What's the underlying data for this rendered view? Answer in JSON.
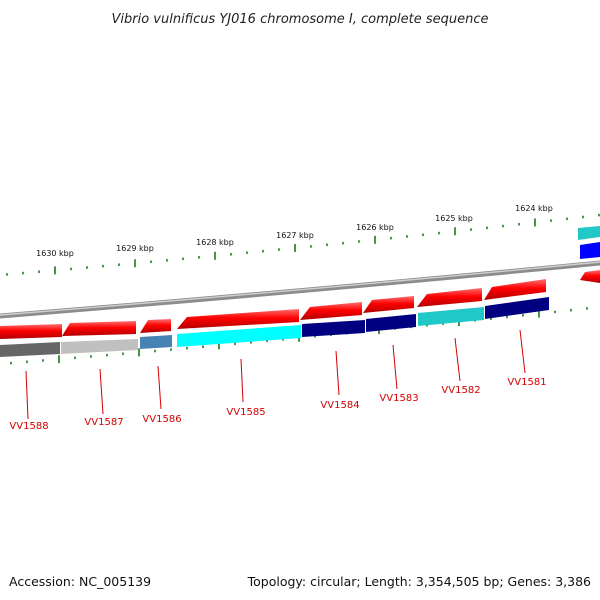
{
  "title": "Vibrio vulnificus YJ016 chromosome I, complete sequence",
  "accession": "Accession: NC_005139",
  "summary": "Topology: circular; Length: 3,354,505 bp; Genes: 3,386",
  "colors": {
    "backbone": "#8c8c8c",
    "tick": "#1a7a1a",
    "label": "#d40000",
    "forward_gene": "#ff0000"
  },
  "ticks": [
    "1630 kbp",
    "1629 kbp",
    "1628 kbp",
    "1627 kbp",
    "1626 kbp",
    "1625 kbp",
    "1624 kbp"
  ],
  "genes": [
    "VV1588",
    "VV1587",
    "VV1586",
    "VV1585",
    "VV1584",
    "VV1583",
    "VV1582",
    "VV1581"
  ]
}
